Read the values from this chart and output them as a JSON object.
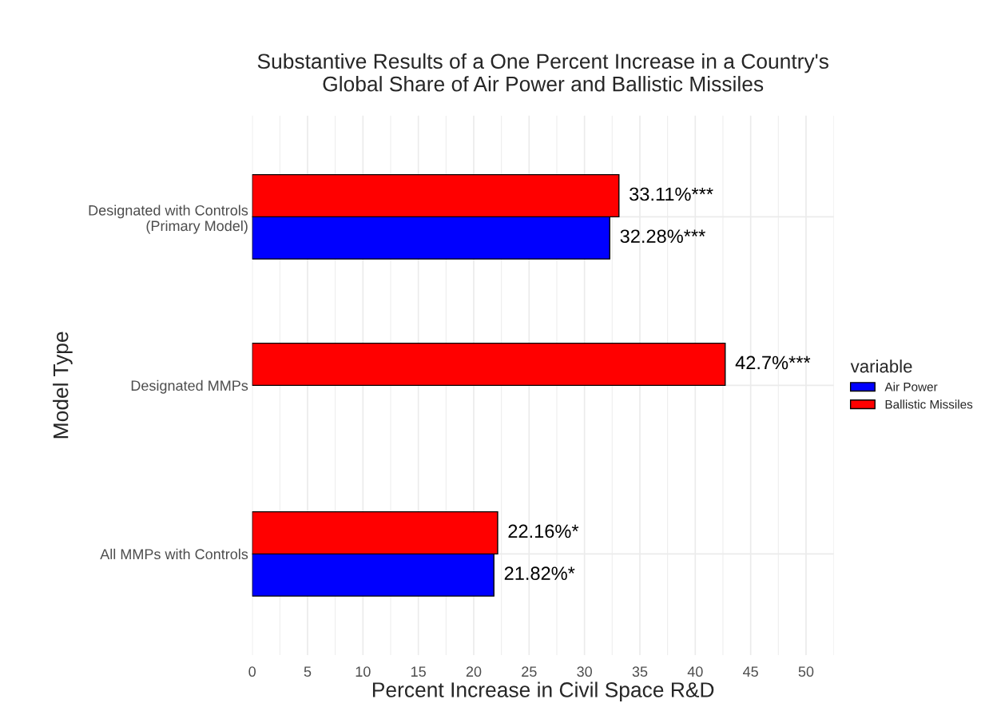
{
  "chart_data": {
    "type": "bar",
    "orientation": "horizontal",
    "title": "Substantive Results of a One Percent Increase in a Country's\nGlobal Share of Air Power and Ballistic Missiles",
    "xlabel": "Percent Increase in Civil Space R&D",
    "ylabel": "Model Type",
    "legend_title": "variable",
    "categories": [
      "Designated with Controls\n(Primary Model)",
      "Designated MMPs",
      "All MMPs with Controls"
    ],
    "series": [
      {
        "name": "Air Power",
        "color": "#0000ff",
        "values": [
          32.28,
          null,
          21.82
        ],
        "value_labels": [
          "32.28%***",
          null,
          "21.82%*"
        ]
      },
      {
        "name": "Ballistic Missiles",
        "color": "#ff0000",
        "values": [
          33.11,
          42.7,
          22.16
        ],
        "value_labels": [
          "33.11%***",
          "42.7%***",
          "22.16%*"
        ]
      }
    ],
    "xlim": [
      0,
      52.5
    ],
    "xticks": [
      0,
      5,
      10,
      15,
      20,
      25,
      30,
      35,
      40,
      45,
      50
    ],
    "grid": true,
    "legend": "right"
  }
}
